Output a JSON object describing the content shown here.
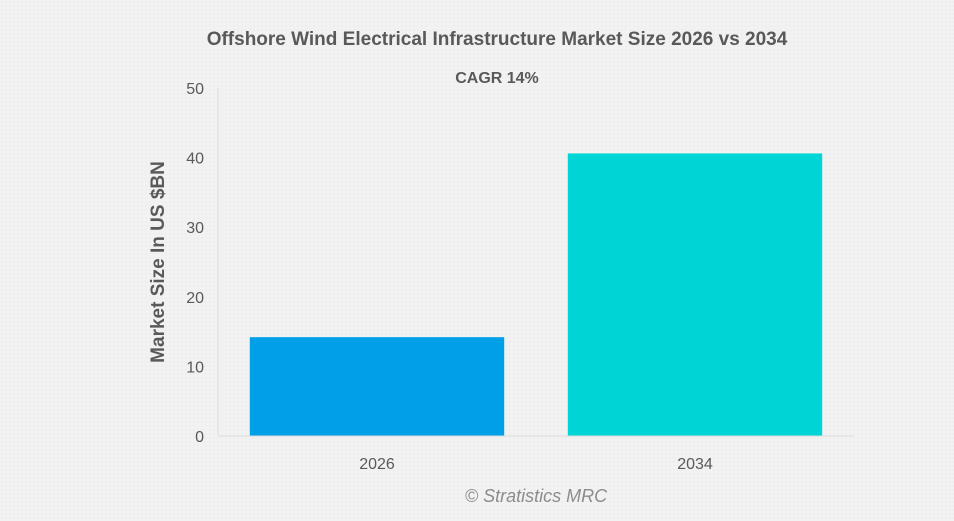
{
  "chart_data": {
    "type": "bar",
    "title": "Offshore Wind Electrical Infrastructure Market Size 2026 vs 2034",
    "subtitle": "CAGR 14%",
    "ylabel": "Market Size In US $BN",
    "xlabel": "",
    "categories": [
      "2026",
      "2034"
    ],
    "values": [
      14.2,
      40.6
    ],
    "ylim": [
      0,
      50
    ],
    "yticks": [
      "0",
      "10",
      "20",
      "30",
      "40",
      "50"
    ],
    "colors": [
      "#00a0e9",
      "#00d4d4"
    ],
    "grid": false,
    "legend": "none"
  },
  "watermark": "© Stratistics MRC"
}
